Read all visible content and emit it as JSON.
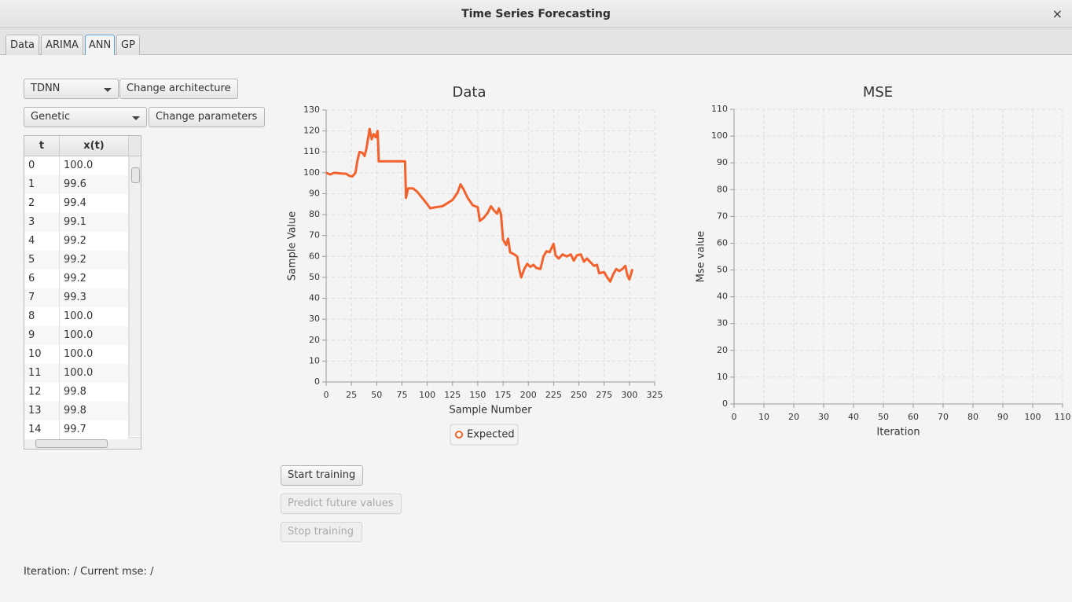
{
  "window": {
    "title": "Time Series Forecasting",
    "close": "×"
  },
  "tabs": [
    "Data",
    "ARIMA",
    "ANN",
    "GP"
  ],
  "controls": {
    "architecture": "TDNN",
    "change_architecture": "Change architecture",
    "algorithm": "Genetic",
    "change_parameters": "Change parameters"
  },
  "table": {
    "columns": [
      "t",
      "x(t)"
    ],
    "rows": [
      [
        "0",
        "100.0"
      ],
      [
        "1",
        "99.6"
      ],
      [
        "2",
        "99.4"
      ],
      [
        "3",
        "99.1"
      ],
      [
        "4",
        "99.2"
      ],
      [
        "5",
        "99.2"
      ],
      [
        "6",
        "99.2"
      ],
      [
        "7",
        "99.3"
      ],
      [
        "8",
        "100.0"
      ],
      [
        "9",
        "100.0"
      ],
      [
        "10",
        "100.0"
      ],
      [
        "11",
        "100.0"
      ],
      [
        "12",
        "99.8"
      ],
      [
        "13",
        "99.8"
      ],
      [
        "14",
        "99.7"
      ]
    ]
  },
  "buttons": {
    "start": "Start training",
    "predict": "Predict future values",
    "stop": "Stop training"
  },
  "status": "Iteration: / Current mse: /",
  "chart_data": [
    {
      "type": "line",
      "title": "Data",
      "x_label": "Sample Number",
      "y_label": "Sample Value",
      "grid": true,
      "legend": "bottom",
      "x": [
        0,
        4,
        8,
        12,
        16,
        20,
        23,
        26,
        29,
        31,
        33,
        36,
        38,
        40,
        43,
        45,
        47,
        49,
        51,
        52,
        78,
        79,
        81,
        86,
        90,
        95,
        100,
        103,
        108,
        115,
        120,
        125,
        130,
        133,
        136,
        140,
        145,
        150,
        152,
        156,
        160,
        163,
        166,
        169,
        171,
        173,
        175,
        178,
        180,
        182,
        186,
        189,
        191,
        193,
        196,
        199,
        202,
        205,
        208,
        212,
        215,
        218,
        221,
        225,
        227,
        230,
        234,
        238,
        242,
        245,
        248,
        252,
        255,
        258,
        262,
        265,
        268,
        270,
        275,
        278,
        281,
        284,
        287,
        290,
        293,
        296,
        298,
        300,
        303
      ],
      "series": [
        {
          "name": "Expected",
          "color": "#f3622d",
          "values": [
            100,
            99.2,
            100,
            99.8,
            99.6,
            99.5,
            98.5,
            98.3,
            100,
            106,
            110,
            109.5,
            108,
            112,
            121,
            116,
            118.5,
            117,
            120,
            105.5,
            105.5,
            88,
            92.5,
            92.5,
            91,
            88,
            85,
            83,
            83.5,
            84,
            85.5,
            87,
            90.5,
            94.5,
            92,
            88,
            84.5,
            83.5,
            77,
            78.5,
            81,
            84,
            82,
            80.5,
            83,
            80,
            68,
            65.5,
            68.5,
            62,
            61,
            60,
            54,
            50,
            54,
            56.5,
            55,
            56,
            54.5,
            54,
            60,
            62.5,
            62,
            66,
            60.5,
            59,
            61,
            60,
            61,
            58,
            60.5,
            61,
            57.5,
            59,
            57,
            55.5,
            56,
            52,
            52.5,
            50,
            48,
            51.5,
            54,
            53,
            54,
            55.5,
            51,
            49,
            54
          ]
        }
      ],
      "xlim": [
        0,
        325
      ],
      "xticks": [
        0,
        25,
        50,
        75,
        100,
        125,
        150,
        175,
        200,
        225,
        250,
        275,
        300,
        325
      ],
      "ylim": [
        0,
        130
      ],
      "yticks": [
        0,
        10,
        20,
        30,
        40,
        50,
        60,
        70,
        80,
        90,
        100,
        110,
        120,
        130
      ]
    },
    {
      "type": "line",
      "title": "MSE",
      "x_label": "Iteration",
      "y_label": "Mse value",
      "grid": true,
      "xlim": [
        0,
        110
      ],
      "xticks": [
        0,
        10,
        20,
        30,
        40,
        50,
        60,
        70,
        80,
        90,
        100,
        110
      ],
      "ylim": [
        0,
        110
      ],
      "yticks": [
        0,
        10,
        20,
        30,
        40,
        50,
        60,
        70,
        80,
        90,
        100,
        110
      ]
    }
  ]
}
